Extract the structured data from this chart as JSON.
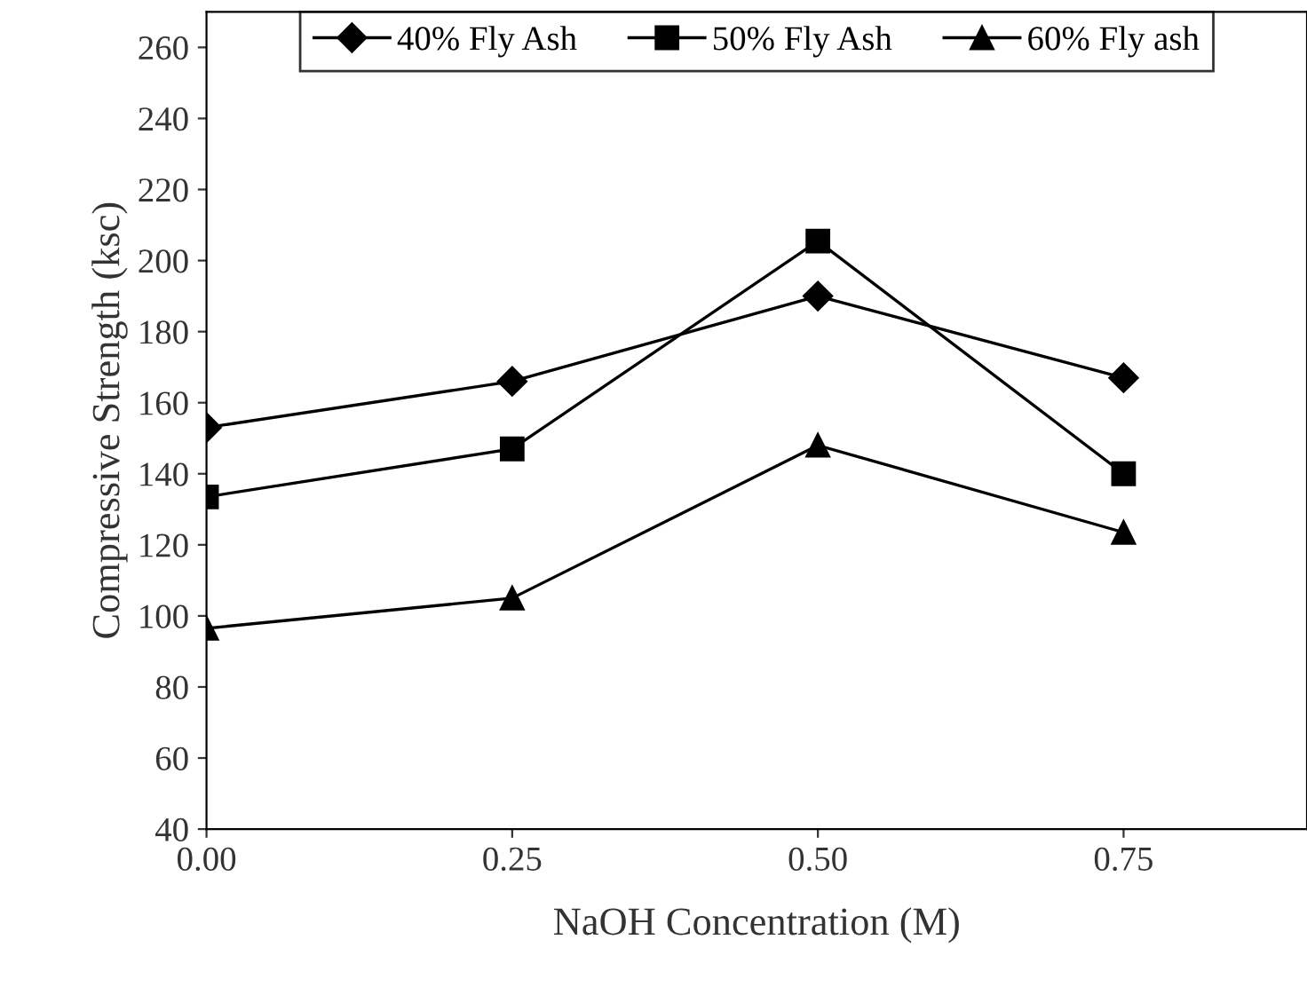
{
  "chart_data": {
    "type": "line",
    "xlabel": "NaOH Concentration (M)",
    "ylabel": "Compressive Strength (ksc)",
    "x": [
      0,
      0.25,
      0.5,
      0.75
    ],
    "series": [
      {
        "name": "40% Fly Ash",
        "color": "#000000",
        "marker": "diamond",
        "values": [
          153,
          166,
          190,
          167
        ]
      },
      {
        "name": "50% Fly Ash",
        "color": "#000000",
        "marker": "square",
        "values": [
          133.5,
          147,
          205.5,
          140
        ]
      },
      {
        "name": "60% Fly ash",
        "color": "#000000",
        "marker": "triangle",
        "values": [
          96.5,
          105,
          148,
          123.5
        ]
      }
    ],
    "xlim": [
      0,
      0.9
    ],
    "xticks": [
      {
        "value": 0,
        "label": "0.00"
      },
      {
        "value": 0.25,
        "label": "0.25"
      },
      {
        "value": 0.5,
        "label": "0.50"
      },
      {
        "value": 0.75,
        "label": "0.75"
      }
    ],
    "ylim": [
      40,
      270
    ],
    "yticks": [
      40,
      60,
      80,
      100,
      120,
      140,
      160,
      180,
      200,
      220,
      240,
      260
    ],
    "grid": false,
    "legend": "top",
    "line_style": "solid"
  }
}
